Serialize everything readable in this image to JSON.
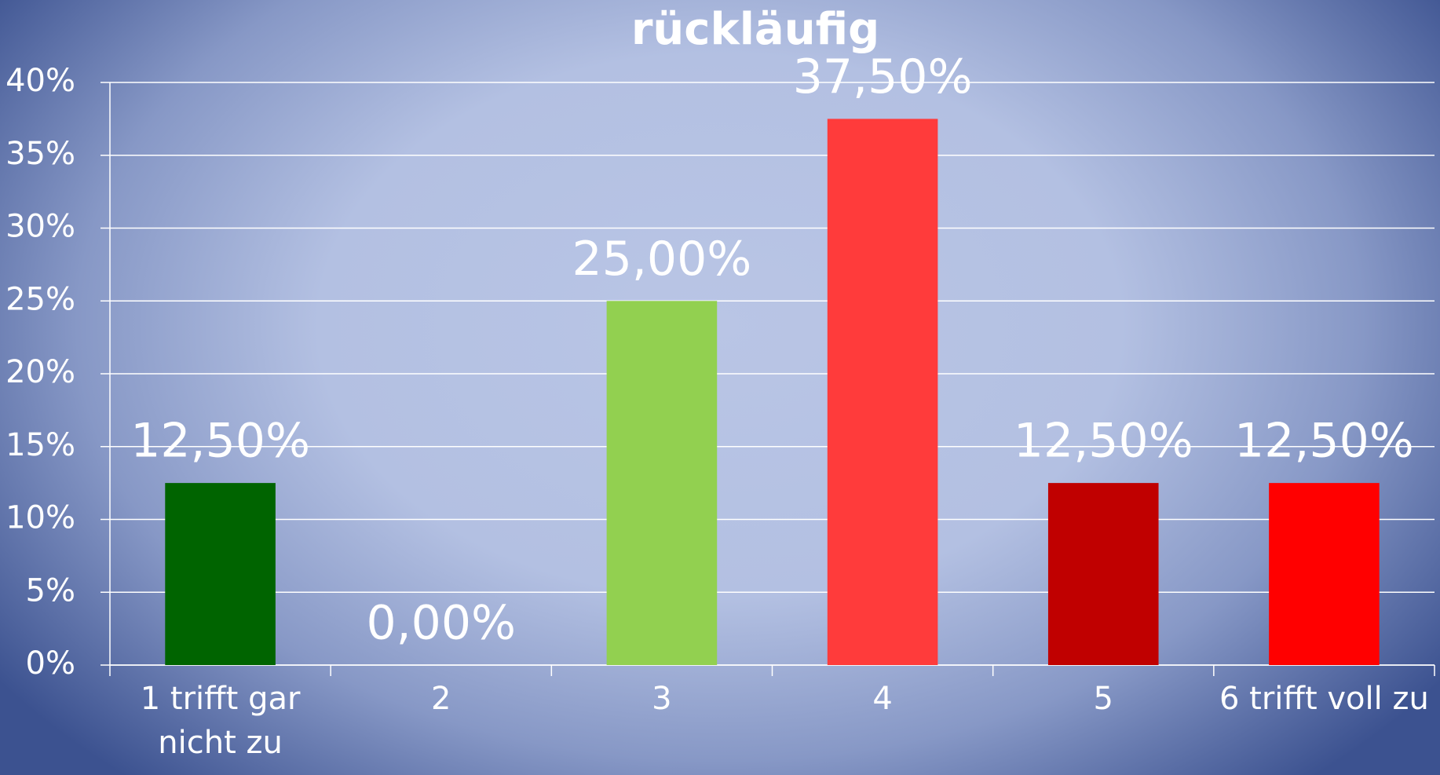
{
  "chart_data": {
    "type": "bar",
    "title": "rückläufig",
    "categories": [
      "1 trifft gar nicht zu",
      "2",
      "3",
      "4",
      "5",
      "6 trifft voll zu"
    ],
    "values": [
      12.5,
      0,
      25,
      37.5,
      12.5,
      12.5
    ],
    "value_labels": [
      "12,50%",
      "0,00%",
      "25,00%",
      "37,50%",
      "12,50%",
      "12,50%"
    ],
    "colors": [
      "#006400",
      null,
      "#92d050",
      "#ff3b3b",
      "#c00000",
      "#ff0000"
    ],
    "ylim": [
      0,
      40
    ],
    "yticks": [
      {
        "value": 0,
        "label": "0%"
      },
      {
        "value": 5,
        "label": "5%"
      },
      {
        "value": 10,
        "label": "10%"
      },
      {
        "value": 15,
        "label": "15%"
      },
      {
        "value": 20,
        "label": "20%"
      },
      {
        "value": 25,
        "label": "25%"
      },
      {
        "value": 30,
        "label": "30%"
      },
      {
        "value": 35,
        "label": "35%"
      },
      {
        "value": 40,
        "label": "40%"
      }
    ],
    "grid": true
  }
}
